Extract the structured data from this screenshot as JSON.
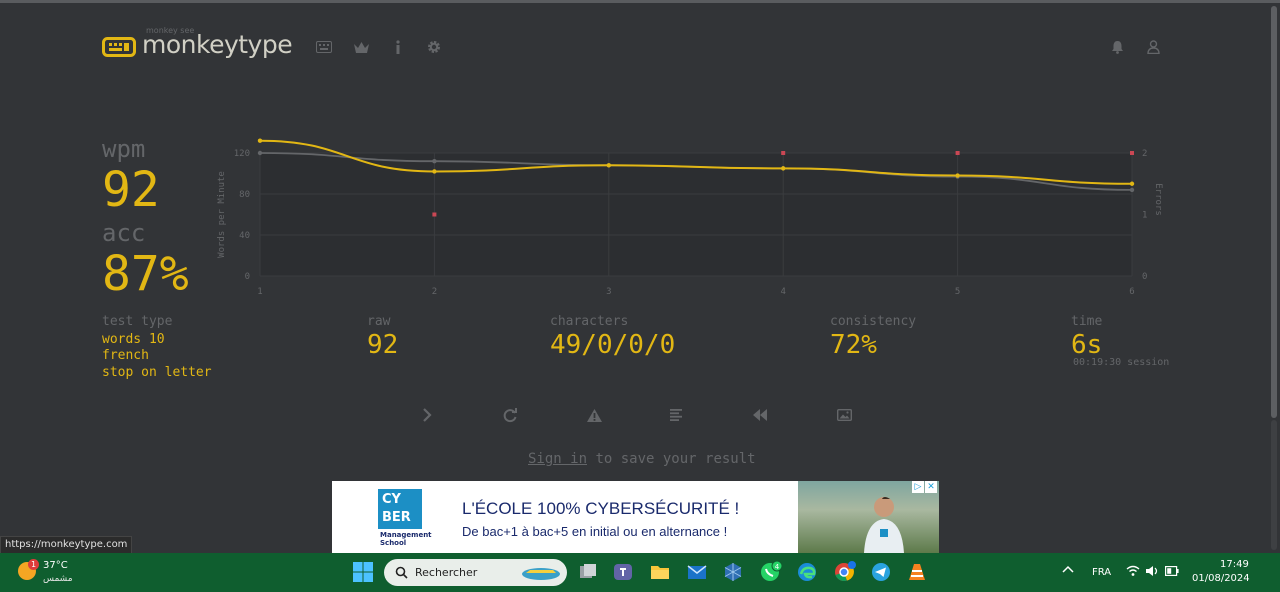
{
  "header": {
    "logo_sub": "monkey see",
    "logo_text": "monkeytype",
    "nav_icons": [
      "keyboard-icon",
      "crown-icon",
      "info-icon",
      "gear-icon"
    ],
    "right_icons": [
      "bell-icon",
      "user-icon"
    ]
  },
  "result": {
    "wpm_label": "wpm",
    "wpm_value": "92",
    "acc_label": "acc",
    "acc_value": "87%",
    "test_type_label": "test type",
    "test_type_lines": [
      "words 10",
      "french",
      "stop on letter"
    ],
    "raw_label": "raw",
    "raw_value": "92",
    "characters_label": "characters",
    "characters_value": "49/0/0/0",
    "consistency_label": "consistency",
    "consistency_value": "72%",
    "time_label": "time",
    "time_value": "6s",
    "session_text": "00:19:30 session"
  },
  "chart_data": {
    "type": "line",
    "x": [
      1,
      2,
      3,
      4,
      5,
      6
    ],
    "ylabel": "Words per Minute",
    "y2label": "Errors",
    "ylim": [
      0,
      120
    ],
    "yticks": [
      0,
      40,
      80,
      120
    ],
    "y2lim": [
      0,
      2
    ],
    "y2ticks": [
      0,
      1,
      2
    ],
    "series": [
      {
        "values": [
          132,
          102,
          108,
          105,
          98,
          90
        ],
        "color": "#e2b714"
      },
      {
        "values": [
          120,
          112,
          108,
          105,
          97,
          84
        ],
        "color": "#646669"
      }
    ],
    "errors": [
      {
        "x": 2,
        "y": 1
      },
      {
        "x": 4,
        "y": 2
      },
      {
        "x": 5,
        "y": 2
      },
      {
        "x": 6,
        "y": 2
      }
    ],
    "error_color": "#ca4754",
    "grid": true
  },
  "actions": [
    "next-test-icon",
    "restart-icon",
    "report-icon",
    "words-history-icon",
    "replay-icon",
    "screenshot-icon"
  ],
  "signin": {
    "link": "Sign in",
    "rest": " to save your result"
  },
  "ad": {
    "logo_lines": [
      "CY",
      "BER"
    ],
    "logo_sub_lines": [
      "Management",
      "School"
    ],
    "title": "L'ÉCOLE 100% CYBERSÉCURITÉ !",
    "desc": "De bac+1 à bac+5 en initial ou en alternance !"
  },
  "url_tooltip": "https://monkeytype.com",
  "taskbar": {
    "weather_badge": "1",
    "temp": "37°C",
    "weather_desc": "مشمس",
    "search_placeholder": "Rechercher",
    "whatsapp_badge": "4",
    "lang": "FRA",
    "time": "17:49",
    "date": "01/08/2024"
  }
}
